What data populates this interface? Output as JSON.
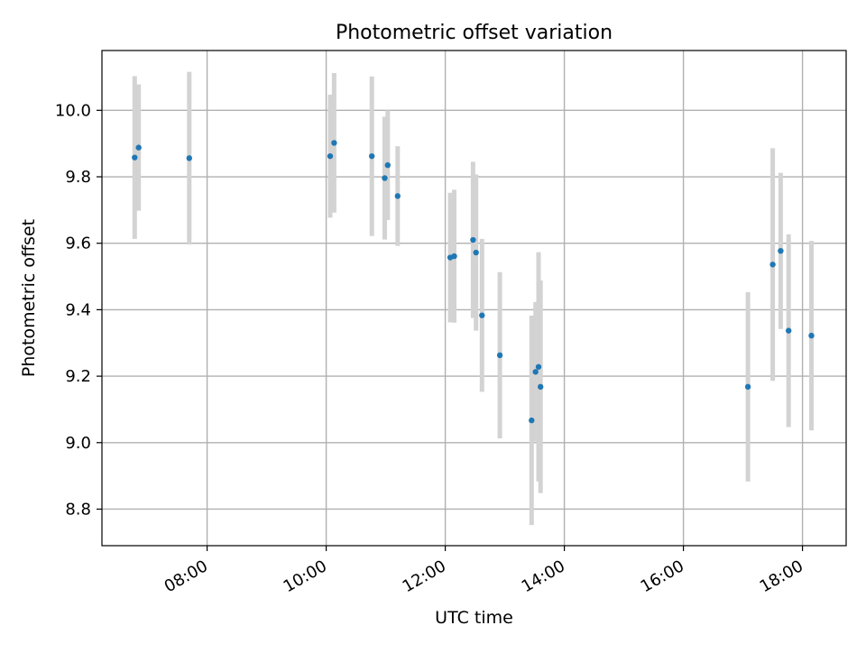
{
  "chart_data": {
    "type": "scatter",
    "title": "Photometric offset variation",
    "xlabel": "UTC time",
    "ylabel": "Photometric offset",
    "x_is_time": true,
    "xlim": [
      "06:14",
      "18:44"
    ],
    "ylim": [
      8.69,
      10.18
    ],
    "xticks": [
      "08:00",
      "10:00",
      "12:00",
      "14:00",
      "16:00",
      "18:00"
    ],
    "yticks": [
      8.8,
      9.0,
      9.2,
      9.4,
      9.6,
      9.8,
      10.0
    ],
    "grid": true,
    "legend": "none",
    "colors": {
      "marker": "#1f77b4",
      "errorbar": "#d3d3d3",
      "grid": "#b0b0b0"
    },
    "series": [
      {
        "points": [
          {
            "x": "06:47",
            "y": 9.858,
            "yerr": 0.245
          },
          {
            "x": "06:51",
            "y": 9.888,
            "yerr": 0.19
          },
          {
            "x": "07:42",
            "y": 9.856,
            "yerr": 0.26
          },
          {
            "x": "10:04",
            "y": 9.862,
            "yerr": 0.185
          },
          {
            "x": "10:08",
            "y": 9.902,
            "yerr": 0.21
          },
          {
            "x": "10:46",
            "y": 9.862,
            "yerr": 0.24
          },
          {
            "x": "10:59",
            "y": 9.796,
            "yerr": 0.185
          },
          {
            "x": "11:02",
            "y": 9.835,
            "yerr": 0.165
          },
          {
            "x": "11:12",
            "y": 9.742,
            "yerr": 0.15
          },
          {
            "x": "12:05",
            "y": 9.557,
            "yerr": 0.195
          },
          {
            "x": "12:09",
            "y": 9.561,
            "yerr": 0.2
          },
          {
            "x": "12:28",
            "y": 9.61,
            "yerr": 0.235
          },
          {
            "x": "12:31",
            "y": 9.572,
            "yerr": 0.235
          },
          {
            "x": "12:37",
            "y": 9.383,
            "yerr": 0.23
          },
          {
            "x": "12:55",
            "y": 9.263,
            "yerr": 0.25
          },
          {
            "x": "13:27",
            "y": 9.067,
            "yerr": 0.315
          },
          {
            "x": "13:31",
            "y": 9.213,
            "yerr": 0.21
          },
          {
            "x": "13:34",
            "y": 9.228,
            "yerr": 0.345
          },
          {
            "x": "13:36",
            "y": 9.168,
            "yerr": 0.32
          },
          {
            "x": "17:05",
            "y": 9.168,
            "yerr": 0.285
          },
          {
            "x": "17:30",
            "y": 9.536,
            "yerr": 0.35
          },
          {
            "x": "17:38",
            "y": 9.577,
            "yerr": 0.235
          },
          {
            "x": "17:46",
            "y": 9.337,
            "yerr": 0.29
          },
          {
            "x": "18:09",
            "y": 9.322,
            "yerr": 0.285
          }
        ]
      }
    ]
  }
}
